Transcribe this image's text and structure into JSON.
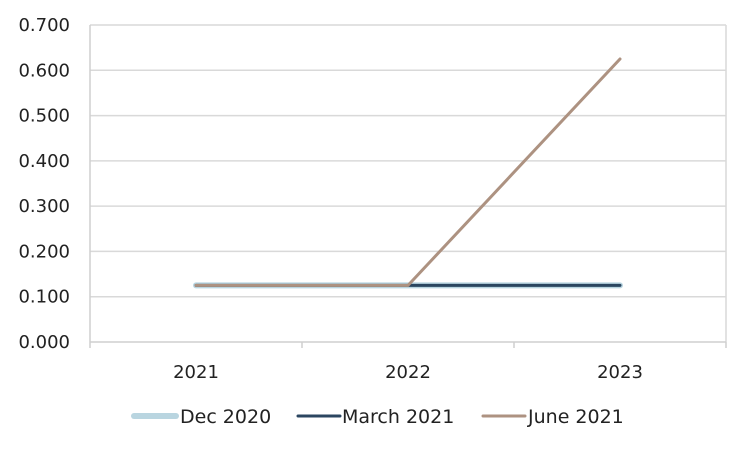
{
  "chart_data": {
    "type": "line",
    "categories": [
      "2021",
      "2022",
      "2023"
    ],
    "series": [
      {
        "name": "Dec 2020",
        "values": [
          0.125,
          0.125,
          0.125
        ],
        "color": "#b9d5e0"
      },
      {
        "name": "March 2021",
        "values": [
          0.125,
          0.125,
          0.125
        ],
        "color": "#2b4660"
      },
      {
        "name": "June 2021",
        "values": [
          0.125,
          0.125,
          0.625
        ],
        "color": "#ad9281"
      }
    ],
    "yticks": [
      "0.000",
      "0.100",
      "0.200",
      "0.300",
      "0.400",
      "0.500",
      "0.600",
      "0.700"
    ],
    "ylim": [
      0,
      0.7
    ],
    "grid": true,
    "legend_position": "bottom",
    "title": "",
    "xlabel": "",
    "ylabel": ""
  }
}
